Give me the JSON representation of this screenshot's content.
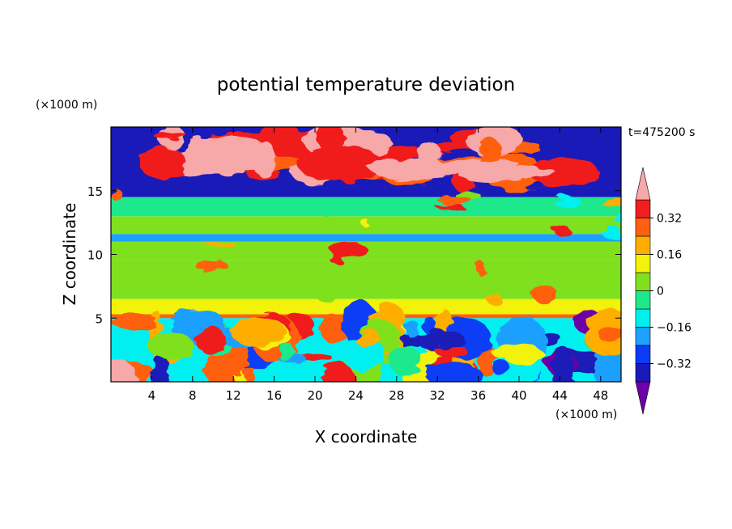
{
  "chart_data": {
    "type": "heatmap",
    "title": "potential temperature deviation",
    "xlabel": "X coordinate",
    "ylabel": "Z coordinate",
    "x_unit": "(×1000 m)",
    "y_unit": "(×1000 m)",
    "time_label": "t=475200 s",
    "xlim": [
      0,
      50
    ],
    "ylim": [
      0,
      20
    ],
    "x_ticks": [
      4,
      8,
      12,
      16,
      20,
      24,
      28,
      32,
      36,
      40,
      44,
      48
    ],
    "y_ticks": [
      5,
      10,
      15
    ],
    "colorbar": {
      "labels": [
        "0.32",
        "0.16",
        "0",
        "−0.16",
        "−0.32"
      ],
      "label_values": [
        0.32,
        0.16,
        0,
        -0.16,
        -0.32
      ],
      "levels": [
        -0.4,
        -0.32,
        -0.24,
        -0.16,
        -0.08,
        0,
        0.08,
        0.16,
        0.24,
        0.32,
        0.4
      ],
      "colors": [
        "#6c00a6",
        "#1a1ab8",
        "#0a3cf5",
        "#1ea0ff",
        "#00f0f0",
        "#1ee88c",
        "#7fe01e",
        "#f2f20a",
        "#ffae00",
        "#ff6010",
        "#f01e1e",
        "#f7a8a8"
      ],
      "min_extension": "#6c00a6",
      "max_extension": "#f7a8a8"
    },
    "layers": [
      {
        "z": [
          0,
          5
        ],
        "description_value": -0.1
      },
      {
        "z": [
          5,
          5.3
        ],
        "description_value": 0.3
      },
      {
        "z": [
          5.3,
          6.5
        ],
        "description_value": 0.08
      },
      {
        "z": [
          6.5,
          8
        ],
        "description_value": 0.04
      },
      {
        "z": [
          8,
          9.5
        ],
        "description_value": 0.06
      },
      {
        "z": [
          9.5,
          11
        ],
        "description_value": 0.02
      },
      {
        "z": [
          11,
          11.6
        ],
        "description_value": -0.2
      },
      {
        "z": [
          11.6,
          13
        ],
        "description_value": 0.0
      },
      {
        "z": [
          13,
          14.5
        ],
        "description_value": -0.06
      },
      {
        "z": [
          14.5,
          15.3
        ],
        "description_value": -0.35
      },
      {
        "z": [
          15.3,
          20
        ],
        "description_value": -0.4
      }
    ]
  }
}
